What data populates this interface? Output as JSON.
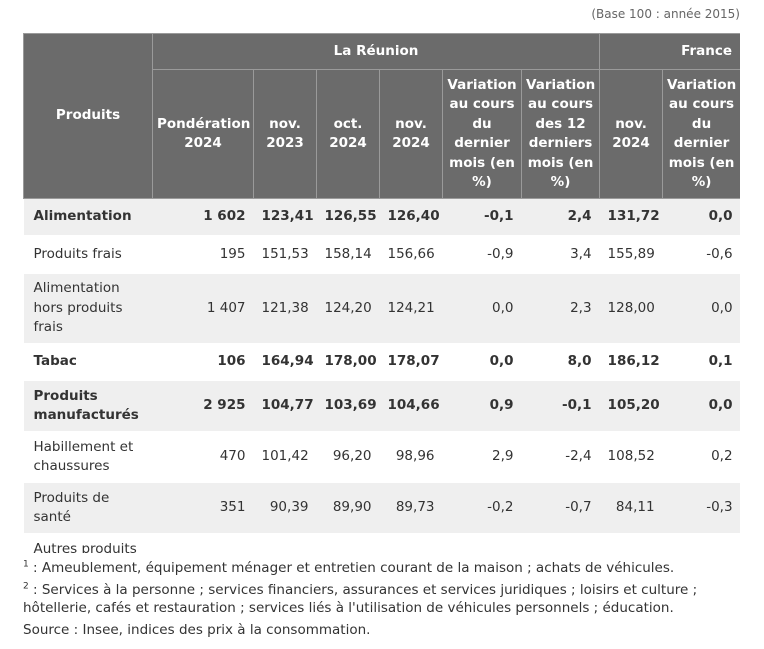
{
  "base_note": "(Base 100 : année 2015)",
  "header": {
    "produits": "Produits",
    "reunion": "La Réunion",
    "france": "France",
    "columns": [
      "Pondération 2024",
      "nov. 2023",
      "oct. 2024",
      "nov. 2024",
      "Variation au cours du dernier mois (en %)",
      "Variation au cours des 12 derniers mois (en %)",
      "nov. 2024",
      "Variation au cours du dernier mois (en %)"
    ]
  },
  "rows": [
    {
      "label": "Alimentation",
      "values": [
        "1 602",
        "123,41",
        "126,55",
        "126,40",
        "-0,1",
        "2,4",
        "131,72",
        "0,0"
      ]
    },
    {
      "label": "Produits frais",
      "values": [
        "195",
        "151,53",
        "158,14",
        "156,66",
        "-0,9",
        "3,4",
        "155,89",
        "-0,6"
      ]
    },
    {
      "label": "Alimentation hors produits frais",
      "values": [
        "1 407",
        "121,38",
        "124,20",
        "124,21",
        "0,0",
        "2,3",
        "128,00",
        "0,0"
      ]
    },
    {
      "label": "Tabac",
      "values": [
        "106",
        "164,94",
        "178,00",
        "178,07",
        "0,0",
        "8,0",
        "186,12",
        "0,1"
      ]
    },
    {
      "label": "Produits manufacturés",
      "values": [
        "2 925",
        "104,77",
        "103,69",
        "104,66",
        "0,9",
        "-0,1",
        "105,20",
        "0,0"
      ]
    },
    {
      "label": "Habillement et chaussures",
      "values": [
        "470",
        "101,42",
        "96,20",
        "98,96",
        "2,9",
        "-2,4",
        "108,52",
        "0,2"
      ]
    },
    {
      "label": "Produits de santé",
      "values": [
        "351",
        "90,39",
        "89,90",
        "89,73",
        "-0,2",
        "-0,7",
        "84,11",
        "-0,3"
      ]
    },
    {
      "label": "Autres produits",
      "values": [
        "",
        "",
        "",
        "",
        "",
        "",
        "",
        ""
      ]
    }
  ],
  "footnotes": {
    "f1_mark": "1",
    "f1_text": " : Ameublement, équipement ménager et entretien courant de la maison ; achats de véhicules.",
    "f2_mark": "2",
    "f2_text": " : Services à la personne ; services financiers, assurances et services juridiques ; loisirs et culture ; hôtellerie, cafés et restauration ; services liés à l'utilisation de véhicules personnels ; éducation.",
    "source": "Source : Insee, indices des prix à la consommation."
  }
}
